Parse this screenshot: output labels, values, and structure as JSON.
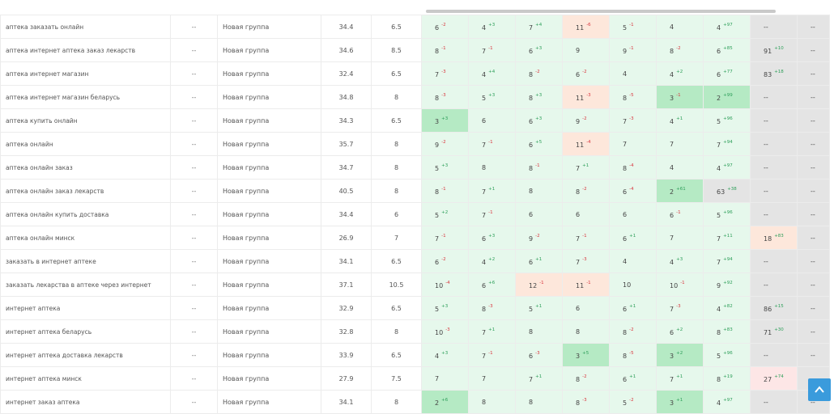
{
  "colors": {
    "light_green": "#e6f8ec",
    "green": "#b5eac4",
    "orange": "#fde7db",
    "pink": "#fde6e6",
    "gray": "#e4e4e4",
    "up": "#2e9f5a",
    "down": "#d9363e",
    "scroll_button": "#3a9bdc"
  },
  "icons": {
    "scroll_top": "chevron-up-icon"
  },
  "rows": [
    {
      "keyword": "аптека заказать онлайн",
      "c1": "--",
      "group": "Новая группа",
      "n1": "34.4",
      "n2": "6.5",
      "positions": [
        {
          "v": "6",
          "d": "-2",
          "bg": "lg"
        },
        {
          "v": "4",
          "d": "+3",
          "bg": "lg"
        },
        {
          "v": "7",
          "d": "+4",
          "bg": "lg"
        },
        {
          "v": "11",
          "d": "-6",
          "bg": "o"
        },
        {
          "v": "5",
          "d": "-1",
          "bg": "lg"
        },
        {
          "v": "4",
          "d": "",
          "bg": "lg"
        },
        {
          "v": "4",
          "d": "+97",
          "bg": "lg"
        },
        {
          "v": "--",
          "d": "",
          "bg": "gray"
        },
        {
          "v": "--",
          "d": "",
          "bg": "gray"
        }
      ]
    },
    {
      "keyword": "аптека интернет аптека заказ лекарств",
      "c1": "--",
      "group": "Новая группа",
      "n1": "34.6",
      "n2": "8.5",
      "positions": [
        {
          "v": "8",
          "d": "-1",
          "bg": "lg"
        },
        {
          "v": "7",
          "d": "-1",
          "bg": "lg"
        },
        {
          "v": "6",
          "d": "+3",
          "bg": "lg"
        },
        {
          "v": "9",
          "d": "",
          "bg": "lg"
        },
        {
          "v": "9",
          "d": "-1",
          "bg": "lg"
        },
        {
          "v": "8",
          "d": "-2",
          "bg": "lg"
        },
        {
          "v": "6",
          "d": "+85",
          "bg": "lg"
        },
        {
          "v": "91",
          "d": "+10",
          "bg": "gray"
        },
        {
          "v": "--",
          "d": "",
          "bg": "gray"
        }
      ]
    },
    {
      "keyword": "аптека интернет магазин",
      "c1": "--",
      "group": "Новая группа",
      "n1": "32.4",
      "n2": "6.5",
      "positions": [
        {
          "v": "7",
          "d": "-3",
          "bg": "lg"
        },
        {
          "v": "4",
          "d": "+4",
          "bg": "lg"
        },
        {
          "v": "8",
          "d": "-2",
          "bg": "lg"
        },
        {
          "v": "6",
          "d": "-2",
          "bg": "lg"
        },
        {
          "v": "4",
          "d": "",
          "bg": "lg"
        },
        {
          "v": "4",
          "d": "+2",
          "bg": "lg"
        },
        {
          "v": "6",
          "d": "+77",
          "bg": "lg"
        },
        {
          "v": "83",
          "d": "+18",
          "bg": "gray"
        },
        {
          "v": "--",
          "d": "",
          "bg": "gray"
        }
      ]
    },
    {
      "keyword": "аптека интернет магазин беларусь",
      "c1": "--",
      "group": "Новая группа",
      "n1": "34.8",
      "n2": "8",
      "positions": [
        {
          "v": "8",
          "d": "-3",
          "bg": "lg"
        },
        {
          "v": "5",
          "d": "+3",
          "bg": "lg"
        },
        {
          "v": "8",
          "d": "+3",
          "bg": "lg"
        },
        {
          "v": "11",
          "d": "-3",
          "bg": "o"
        },
        {
          "v": "8",
          "d": "-5",
          "bg": "lg"
        },
        {
          "v": "3",
          "d": "-1",
          "bg": "g"
        },
        {
          "v": "2",
          "d": "+99",
          "bg": "g"
        },
        {
          "v": "--",
          "d": "",
          "bg": "gray"
        },
        {
          "v": "--",
          "d": "",
          "bg": "gray"
        }
      ]
    },
    {
      "keyword": "аптека купить онлайн",
      "c1": "--",
      "group": "Новая группа",
      "n1": "34.3",
      "n2": "6.5",
      "positions": [
        {
          "v": "3",
          "d": "+3",
          "bg": "g"
        },
        {
          "v": "6",
          "d": "",
          "bg": "lg"
        },
        {
          "v": "6",
          "d": "+3",
          "bg": "lg"
        },
        {
          "v": "9",
          "d": "-2",
          "bg": "lg"
        },
        {
          "v": "7",
          "d": "-3",
          "bg": "lg"
        },
        {
          "v": "4",
          "d": "+1",
          "bg": "lg"
        },
        {
          "v": "5",
          "d": "+96",
          "bg": "lg"
        },
        {
          "v": "--",
          "d": "",
          "bg": "gray"
        },
        {
          "v": "--",
          "d": "",
          "bg": "gray"
        }
      ]
    },
    {
      "keyword": "аптека онлайн",
      "c1": "--",
      "group": "Новая группа",
      "n1": "35.7",
      "n2": "8",
      "positions": [
        {
          "v": "9",
          "d": "-2",
          "bg": "lg"
        },
        {
          "v": "7",
          "d": "-1",
          "bg": "lg"
        },
        {
          "v": "6",
          "d": "+5",
          "bg": "lg"
        },
        {
          "v": "11",
          "d": "-4",
          "bg": "o"
        },
        {
          "v": "7",
          "d": "",
          "bg": "lg"
        },
        {
          "v": "7",
          "d": "",
          "bg": "lg"
        },
        {
          "v": "7",
          "d": "+94",
          "bg": "lg"
        },
        {
          "v": "--",
          "d": "",
          "bg": "gray"
        },
        {
          "v": "--",
          "d": "",
          "bg": "gray"
        }
      ]
    },
    {
      "keyword": "аптека онлайн заказ",
      "c1": "--",
      "group": "Новая группа",
      "n1": "34.7",
      "n2": "8",
      "positions": [
        {
          "v": "5",
          "d": "+3",
          "bg": "lg"
        },
        {
          "v": "8",
          "d": "",
          "bg": "lg"
        },
        {
          "v": "8",
          "d": "-1",
          "bg": "lg"
        },
        {
          "v": "7",
          "d": "+1",
          "bg": "lg"
        },
        {
          "v": "8",
          "d": "-4",
          "bg": "lg"
        },
        {
          "v": "4",
          "d": "",
          "bg": "lg"
        },
        {
          "v": "4",
          "d": "+97",
          "bg": "lg"
        },
        {
          "v": "--",
          "d": "",
          "bg": "gray"
        },
        {
          "v": "--",
          "d": "",
          "bg": "gray"
        }
      ]
    },
    {
      "keyword": "аптека онлайн заказ лекарств",
      "c1": "--",
      "group": "Новая группа",
      "n1": "40.5",
      "n2": "8",
      "positions": [
        {
          "v": "8",
          "d": "-1",
          "bg": "lg"
        },
        {
          "v": "7",
          "d": "+1",
          "bg": "lg"
        },
        {
          "v": "8",
          "d": "",
          "bg": "lg"
        },
        {
          "v": "8",
          "d": "-2",
          "bg": "lg"
        },
        {
          "v": "6",
          "d": "-4",
          "bg": "lg"
        },
        {
          "v": "2",
          "d": "+61",
          "bg": "g"
        },
        {
          "v": "63",
          "d": "+38",
          "bg": "gray"
        },
        {
          "v": "--",
          "d": "",
          "bg": "gray"
        },
        {
          "v": "--",
          "d": "",
          "bg": "gray"
        }
      ]
    },
    {
      "keyword": "аптека онлайн купить доставка",
      "c1": "--",
      "group": "Новая группа",
      "n1": "34.4",
      "n2": "6",
      "positions": [
        {
          "v": "5",
          "d": "+2",
          "bg": "lg"
        },
        {
          "v": "7",
          "d": "-1",
          "bg": "lg"
        },
        {
          "v": "6",
          "d": "",
          "bg": "lg"
        },
        {
          "v": "6",
          "d": "",
          "bg": "lg"
        },
        {
          "v": "6",
          "d": "",
          "bg": "lg"
        },
        {
          "v": "6",
          "d": "-1",
          "bg": "lg"
        },
        {
          "v": "5",
          "d": "+96",
          "bg": "lg"
        },
        {
          "v": "--",
          "d": "",
          "bg": "gray"
        },
        {
          "v": "--",
          "d": "",
          "bg": "gray"
        }
      ]
    },
    {
      "keyword": "аптека онлайн минск",
      "c1": "--",
      "group": "Новая группа",
      "n1": "26.9",
      "n2": "7",
      "positions": [
        {
          "v": "7",
          "d": "-1",
          "bg": "lg"
        },
        {
          "v": "6",
          "d": "+3",
          "bg": "lg"
        },
        {
          "v": "9",
          "d": "-2",
          "bg": "lg"
        },
        {
          "v": "7",
          "d": "-1",
          "bg": "lg"
        },
        {
          "v": "6",
          "d": "+1",
          "bg": "lg"
        },
        {
          "v": "7",
          "d": "",
          "bg": "lg"
        },
        {
          "v": "7",
          "d": "+11",
          "bg": "lg"
        },
        {
          "v": "18",
          "d": "+83",
          "bg": "o"
        },
        {
          "v": "--",
          "d": "",
          "bg": "gray"
        }
      ]
    },
    {
      "keyword": "заказать в интернет аптеке",
      "c1": "--",
      "group": "Новая группа",
      "n1": "34.1",
      "n2": "6.5",
      "positions": [
        {
          "v": "6",
          "d": "-2",
          "bg": "lg"
        },
        {
          "v": "4",
          "d": "+2",
          "bg": "lg"
        },
        {
          "v": "6",
          "d": "+1",
          "bg": "lg"
        },
        {
          "v": "7",
          "d": "-3",
          "bg": "lg"
        },
        {
          "v": "4",
          "d": "",
          "bg": "lg"
        },
        {
          "v": "4",
          "d": "+3",
          "bg": "lg"
        },
        {
          "v": "7",
          "d": "+94",
          "bg": "lg"
        },
        {
          "v": "--",
          "d": "",
          "bg": "gray"
        },
        {
          "v": "--",
          "d": "",
          "bg": "gray"
        }
      ]
    },
    {
      "keyword": "заказать лекарства в аптеке через интернет",
      "c1": "--",
      "group": "Новая группа",
      "n1": "37.1",
      "n2": "10.5",
      "positions": [
        {
          "v": "10",
          "d": "-4",
          "bg": "lg"
        },
        {
          "v": "6",
          "d": "+6",
          "bg": "lg"
        },
        {
          "v": "12",
          "d": "-1",
          "bg": "o"
        },
        {
          "v": "11",
          "d": "-1",
          "bg": "o"
        },
        {
          "v": "10",
          "d": "",
          "bg": "lg"
        },
        {
          "v": "10",
          "d": "-1",
          "bg": "lg"
        },
        {
          "v": "9",
          "d": "+92",
          "bg": "lg"
        },
        {
          "v": "--",
          "d": "",
          "bg": "gray"
        },
        {
          "v": "--",
          "d": "",
          "bg": "gray"
        }
      ]
    },
    {
      "keyword": "интернет аптека",
      "c1": "--",
      "group": "Новая группа",
      "n1": "32.9",
      "n2": "6.5",
      "positions": [
        {
          "v": "5",
          "d": "+3",
          "bg": "lg"
        },
        {
          "v": "8",
          "d": "-3",
          "bg": "lg"
        },
        {
          "v": "5",
          "d": "+1",
          "bg": "lg"
        },
        {
          "v": "6",
          "d": "",
          "bg": "lg"
        },
        {
          "v": "6",
          "d": "+1",
          "bg": "lg"
        },
        {
          "v": "7",
          "d": "-3",
          "bg": "lg"
        },
        {
          "v": "4",
          "d": "+82",
          "bg": "lg"
        },
        {
          "v": "86",
          "d": "+15",
          "bg": "gray"
        },
        {
          "v": "--",
          "d": "",
          "bg": "gray"
        }
      ]
    },
    {
      "keyword": "интернет аптека беларусь",
      "c1": "--",
      "group": "Новая группа",
      "n1": "32.8",
      "n2": "8",
      "positions": [
        {
          "v": "10",
          "d": "-3",
          "bg": "lg"
        },
        {
          "v": "7",
          "d": "+1",
          "bg": "lg"
        },
        {
          "v": "8",
          "d": "",
          "bg": "lg"
        },
        {
          "v": "8",
          "d": "",
          "bg": "lg"
        },
        {
          "v": "8",
          "d": "-2",
          "bg": "lg"
        },
        {
          "v": "6",
          "d": "+2",
          "bg": "lg"
        },
        {
          "v": "8",
          "d": "+83",
          "bg": "lg"
        },
        {
          "v": "71",
          "d": "+30",
          "bg": "gray"
        },
        {
          "v": "--",
          "d": "",
          "bg": "gray"
        }
      ]
    },
    {
      "keyword": "интернет аптека доставка лекарств",
      "c1": "--",
      "group": "Новая группа",
      "n1": "33.9",
      "n2": "6.5",
      "positions": [
        {
          "v": "4",
          "d": "+3",
          "bg": "lg"
        },
        {
          "v": "7",
          "d": "-1",
          "bg": "lg"
        },
        {
          "v": "6",
          "d": "-3",
          "bg": "lg"
        },
        {
          "v": "3",
          "d": "+5",
          "bg": "g"
        },
        {
          "v": "8",
          "d": "-5",
          "bg": "lg"
        },
        {
          "v": "3",
          "d": "+2",
          "bg": "g"
        },
        {
          "v": "5",
          "d": "+96",
          "bg": "lg"
        },
        {
          "v": "--",
          "d": "",
          "bg": "gray"
        },
        {
          "v": "--",
          "d": "",
          "bg": "gray"
        }
      ]
    },
    {
      "keyword": "интернет аптека минск",
      "c1": "--",
      "group": "Новая группа",
      "n1": "27.9",
      "n2": "7.5",
      "positions": [
        {
          "v": "7",
          "d": "",
          "bg": "lg"
        },
        {
          "v": "7",
          "d": "",
          "bg": "lg"
        },
        {
          "v": "7",
          "d": "+1",
          "bg": "lg"
        },
        {
          "v": "8",
          "d": "-2",
          "bg": "lg"
        },
        {
          "v": "6",
          "d": "+1",
          "bg": "lg"
        },
        {
          "v": "7",
          "d": "+1",
          "bg": "lg"
        },
        {
          "v": "8",
          "d": "+19",
          "bg": "lg"
        },
        {
          "v": "27",
          "d": "+74",
          "bg": "p"
        },
        {
          "v": "--",
          "d": "",
          "bg": "gray"
        }
      ]
    },
    {
      "keyword": "интернет заказ аптека",
      "c1": "--",
      "group": "Новая группа",
      "n1": "34.1",
      "n2": "8",
      "positions": [
        {
          "v": "2",
          "d": "+6",
          "bg": "g"
        },
        {
          "v": "8",
          "d": "",
          "bg": "lg"
        },
        {
          "v": "8",
          "d": "",
          "bg": "lg"
        },
        {
          "v": "8",
          "d": "-3",
          "bg": "lg"
        },
        {
          "v": "5",
          "d": "-2",
          "bg": "lg"
        },
        {
          "v": "3",
          "d": "+1",
          "bg": "g"
        },
        {
          "v": "4",
          "d": "+97",
          "bg": "lg"
        },
        {
          "v": "--",
          "d": "",
          "bg": "gray"
        },
        {
          "v": "--",
          "d": "",
          "bg": "gray"
        }
      ]
    }
  ]
}
